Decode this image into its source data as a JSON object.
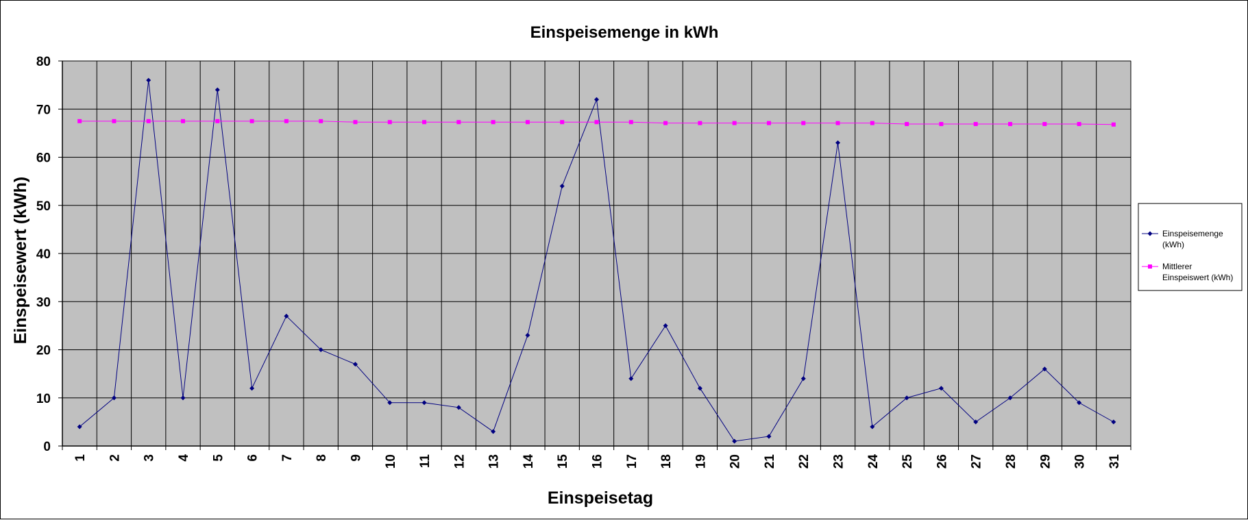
{
  "chart_data": {
    "type": "line",
    "title": "Einspeisemenge in kWh",
    "xlabel": "Einspeisetag",
    "ylabel": "Einspeisewert  (kWh)",
    "ylim": [
      0,
      80
    ],
    "yticks": [
      "0",
      "10",
      "20",
      "30",
      "40",
      "50",
      "60",
      "70",
      "80"
    ],
    "categories": [
      "1",
      "2",
      "3",
      "4",
      "5",
      "6",
      "7",
      "8",
      "9",
      "10",
      "11",
      "12",
      "13",
      "14",
      "15",
      "16",
      "17",
      "18",
      "19",
      "20",
      "21",
      "22",
      "23",
      "24",
      "25",
      "26",
      "27",
      "28",
      "29",
      "30",
      "31"
    ],
    "grid": true,
    "legend_position": "right",
    "plot_background": "#C0C0C0",
    "series": [
      {
        "legend_lines": [
          "Einspeisemenge",
          "(kWh)"
        ],
        "color": "#000080",
        "marker": "diamond",
        "values": [
          4,
          10,
          76,
          10,
          74,
          12,
          27,
          20,
          17,
          9,
          9,
          8,
          3,
          23,
          54,
          72,
          14,
          25,
          12,
          1,
          2,
          14,
          63,
          4,
          10,
          12,
          5,
          10,
          16,
          9,
          5
        ]
      },
      {
        "legend_lines": [
          "Mittlerer",
          "Einspeiswert (kWh)"
        ],
        "color": "#FF00FF",
        "marker": "square",
        "values": [
          67.5,
          67.5,
          67.5,
          67.5,
          67.5,
          67.5,
          67.5,
          67.5,
          67.3,
          67.3,
          67.3,
          67.3,
          67.3,
          67.3,
          67.3,
          67.3,
          67.3,
          67.1,
          67.1,
          67.1,
          67.1,
          67.1,
          67.1,
          67.1,
          66.9,
          66.9,
          66.9,
          66.9,
          66.9,
          66.9,
          66.8
        ]
      }
    ]
  }
}
